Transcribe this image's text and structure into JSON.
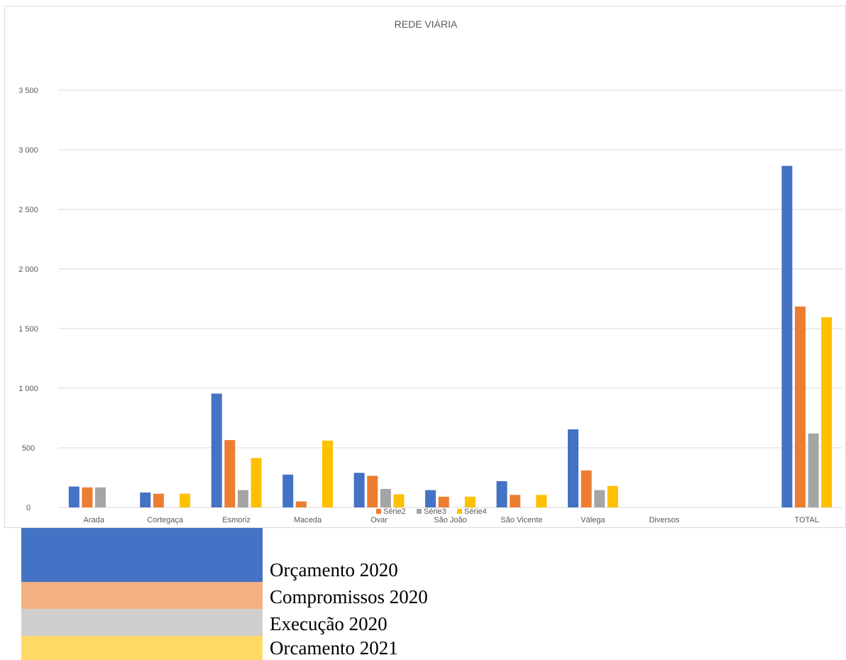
{
  "chart_data": {
    "type": "bar",
    "title": "REDE VIÁRIA",
    "xlabel": "",
    "ylabel": "",
    "ylim": [
      0,
      3500
    ],
    "yticks": [
      0,
      500,
      1000,
      1500,
      2000,
      2500,
      3000,
      3500
    ],
    "ytick_labels": [
      "0",
      "500",
      "1 000",
      "1 500",
      "2 000",
      "2 500",
      "3 000",
      "3 500"
    ],
    "grid": true,
    "categories": [
      "Arada",
      "Cortegaça",
      "Esmoriz",
      "Maceda",
      "Ovar",
      "São João",
      "São Vicente",
      "Válega",
      "Diversos",
      "",
      "TOTAL"
    ],
    "series": [
      {
        "name": "",
        "color": "#4472c4",
        "values": [
          175,
          125,
          955,
          275,
          290,
          145,
          220,
          655,
          0,
          0,
          2865
        ]
      },
      {
        "name": "Série2",
        "color": "#ed7d31",
        "values": [
          168,
          115,
          565,
          50,
          265,
          90,
          105,
          310,
          0,
          0,
          1685
        ]
      },
      {
        "name": "Série3",
        "color": "#a5a5a5",
        "values": [
          168,
          0,
          145,
          0,
          155,
          0,
          0,
          145,
          0,
          0,
          620
        ]
      },
      {
        "name": "Série4",
        "color": "#ffc000",
        "values": [
          0,
          115,
          415,
          560,
          110,
          90,
          105,
          180,
          0,
          0,
          1595
        ]
      }
    ],
    "legend_position": "bottom-center"
  },
  "legend_below": [
    {
      "label": "Orçamento 2020",
      "color": "#4472c4"
    },
    {
      "label": "Compromissos 2020",
      "color": "#f4b183"
    },
    {
      "label": "Execução 2020",
      "color": "#d0cece"
    },
    {
      "label": "Orcamento 2021",
      "color": "#ffd966"
    }
  ]
}
